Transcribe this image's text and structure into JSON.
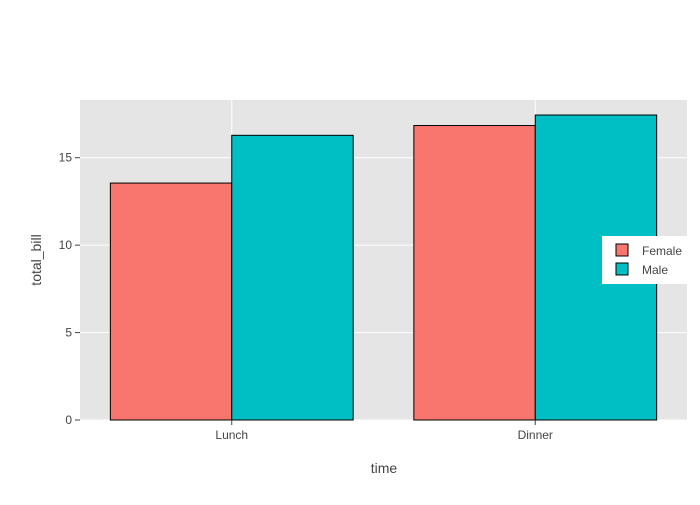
{
  "chart_data": {
    "type": "bar",
    "title": "",
    "xlabel": "time",
    "ylabel": "total_bill",
    "categories": [
      "Lunch",
      "Dinner"
    ],
    "series": [
      {
        "name": "Female",
        "values": [
          13.55,
          16.84
        ],
        "color": "#f8766d"
      },
      {
        "name": "Male",
        "values": [
          16.28,
          17.44
        ],
        "color": "#00bfc4"
      }
    ],
    "ylim": [
      0,
      18.3
    ],
    "yticks": [
      0,
      5,
      10,
      15
    ],
    "ytick_labels": [
      "0",
      "5",
      "10",
      "15"
    ],
    "grid": true,
    "legend_position": "right",
    "colors": {
      "plot_background": "#e5e5e5",
      "grid": "#ffffff",
      "bar_outline": "#000000"
    }
  }
}
